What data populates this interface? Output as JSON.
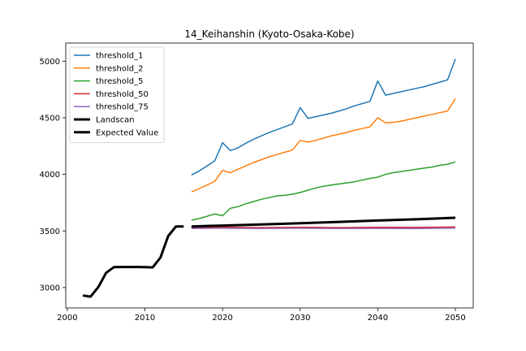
{
  "chart_data": {
    "type": "line",
    "title": "14_Keihanshin (Kyoto-Osaka-Kobe)",
    "xlabel": "",
    "ylabel": "",
    "xlim": [
      1999.8,
      2052.3
    ],
    "ylim": [
      2820,
      5160
    ],
    "xticks": [
      2000,
      2010,
      2020,
      2030,
      2040,
      2050
    ],
    "yticks": [
      3000,
      3500,
      4000,
      4500,
      5000
    ],
    "grid": false,
    "legend_position": "top-left",
    "series": [
      {
        "name": "threshold_1",
        "color": "#1f77b4",
        "width": 1.5,
        "x": [
          2016,
          2017,
          2018,
          2019,
          2020,
          2021,
          2022,
          2023,
          2024,
          2025,
          2026,
          2027,
          2028,
          2029,
          2030,
          2031,
          2032,
          2033,
          2034,
          2035,
          2036,
          2037,
          2038,
          2039,
          2040,
          2041,
          2042,
          2043,
          2044,
          2045,
          2046,
          2047,
          2048,
          2049,
          2050
        ],
        "y": [
          3995,
          4030,
          4075,
          4120,
          4280,
          4210,
          4235,
          4275,
          4310,
          4340,
          4370,
          4395,
          4420,
          4445,
          4590,
          4495,
          4510,
          4525,
          4540,
          4560,
          4580,
          4605,
          4625,
          4645,
          4825,
          4700,
          4715,
          4730,
          4745,
          4760,
          4775,
          4795,
          4815,
          4835,
          5020
        ]
      },
      {
        "name": "threshold_2",
        "color": "#ff7f0e",
        "width": 1.5,
        "x": [
          2016,
          2017,
          2018,
          2019,
          2020,
          2021,
          2022,
          2023,
          2024,
          2025,
          2026,
          2027,
          2028,
          2029,
          2030,
          2031,
          2032,
          2033,
          2034,
          2035,
          2036,
          2037,
          2038,
          2039,
          2040,
          2041,
          2042,
          2043,
          2044,
          2045,
          2046,
          2047,
          2048,
          2049,
          2050
        ],
        "y": [
          3845,
          3875,
          3905,
          3940,
          4035,
          4015,
          4045,
          4075,
          4105,
          4130,
          4155,
          4175,
          4195,
          4215,
          4300,
          4285,
          4300,
          4320,
          4340,
          4355,
          4370,
          4390,
          4405,
          4420,
          4500,
          4455,
          4460,
          4470,
          4485,
          4500,
          4515,
          4530,
          4545,
          4560,
          4670
        ]
      },
      {
        "name": "threshold_5",
        "color": "#2ca02c",
        "width": 1.5,
        "x": [
          2016,
          2017,
          2018,
          2019,
          2020,
          2021,
          2022,
          2023,
          2024,
          2025,
          2026,
          2027,
          2028,
          2029,
          2030,
          2031,
          2032,
          2033,
          2034,
          2035,
          2036,
          2037,
          2038,
          2039,
          2040,
          2041,
          2042,
          2043,
          2044,
          2045,
          2046,
          2047,
          2048,
          2049,
          2050
        ],
        "y": [
          3595,
          3610,
          3630,
          3650,
          3635,
          3700,
          3715,
          3740,
          3760,
          3780,
          3795,
          3810,
          3815,
          3825,
          3840,
          3860,
          3880,
          3895,
          3905,
          3915,
          3925,
          3935,
          3950,
          3965,
          3975,
          4000,
          4015,
          4025,
          4035,
          4045,
          4055,
          4065,
          4080,
          4090,
          4110
        ]
      },
      {
        "name": "threshold_50",
        "color": "#d62728",
        "width": 1.5,
        "x": [
          2016,
          2020,
          2025,
          2030,
          2035,
          2040,
          2045,
          2050
        ],
        "y": [
          3530,
          3532,
          3530,
          3533,
          3530,
          3532,
          3531,
          3535
        ]
      },
      {
        "name": "threshold_75",
        "color": "#9467bd",
        "width": 1.5,
        "x": [
          2016,
          2020,
          2025,
          2030,
          2035,
          2040,
          2045,
          2050
        ],
        "y": [
          3522,
          3524,
          3522,
          3524,
          3522,
          3523,
          3522,
          3525
        ]
      },
      {
        "name": "Landscan",
        "color": "#000000",
        "width": 3,
        "x": [
          2002,
          2003,
          2004,
          2005,
          2006,
          2007,
          2008,
          2009,
          2010,
          2011,
          2012,
          2013,
          2014,
          2015
        ],
        "y": [
          2930,
          2920,
          3005,
          3130,
          3180,
          3182,
          3182,
          3182,
          3180,
          3178,
          3265,
          3455,
          3540,
          3540
        ]
      },
      {
        "name": "Expected Value",
        "color": "#000000",
        "width": 3,
        "x": [
          2016,
          2020,
          2025,
          2030,
          2035,
          2040,
          2045,
          2050
        ],
        "y": [
          3540,
          3548,
          3558,
          3568,
          3580,
          3592,
          3603,
          3617
        ]
      }
    ]
  }
}
